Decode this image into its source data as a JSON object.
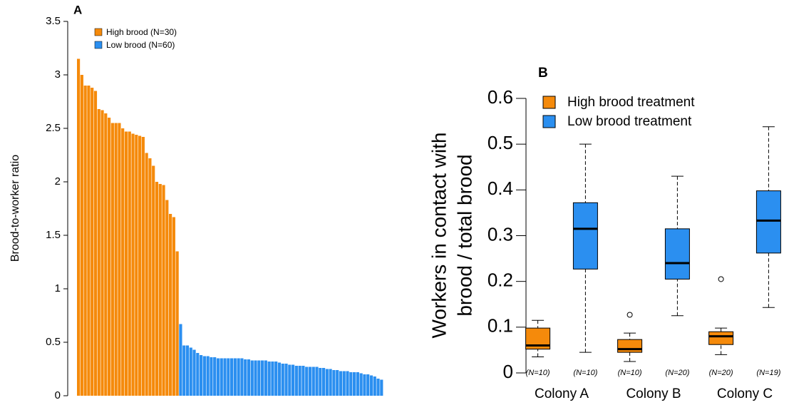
{
  "chart_data": [
    {
      "type": "bar",
      "panel": "A",
      "ylabel": "Brood-to-worker ratio",
      "ylim": [
        0,
        3.5
      ],
      "yticks": [
        0,
        0.5,
        1,
        1.5,
        2,
        2.5,
        3,
        3.5
      ],
      "categories": [
        null,
        null,
        null,
        null,
        null,
        null,
        null,
        null,
        null,
        null,
        null,
        null,
        null,
        null,
        null,
        null,
        null,
        null,
        null,
        null,
        null,
        null,
        null,
        null,
        null,
        null,
        null,
        null,
        null,
        null,
        null,
        null,
        null,
        null,
        null,
        null,
        null,
        null,
        null,
        null,
        null,
        null,
        null,
        null,
        null,
        null,
        null,
        null,
        null,
        null,
        null,
        null,
        null,
        null,
        null,
        null,
        null,
        null,
        null,
        null,
        null,
        null,
        null,
        null,
        null,
        null,
        null,
        null,
        null,
        null,
        null,
        null,
        null,
        null,
        null,
        null,
        null,
        null,
        null,
        null,
        null,
        null,
        null,
        null,
        null,
        null,
        null,
        null,
        null,
        null
      ],
      "series": [
        {
          "name": "High brood (N=30)",
          "color": "#f58a0b",
          "values": [
            3.15,
            3.0,
            2.9,
            2.9,
            2.88,
            2.85,
            2.68,
            2.67,
            2.64,
            2.6,
            2.55,
            2.55,
            2.55,
            2.5,
            2.47,
            2.47,
            2.45,
            2.44,
            2.43,
            2.42,
            2.27,
            2.22,
            2.15,
            2.0,
            1.98,
            1.97,
            1.83,
            1.7,
            1.67,
            1.35,
            null,
            null,
            null,
            null,
            null,
            null,
            null,
            null,
            null,
            null,
            null,
            null,
            null,
            null,
            null,
            null,
            null,
            null,
            null,
            null,
            null,
            null,
            null,
            null,
            null,
            null,
            null,
            null,
            null,
            null,
            null,
            null,
            null,
            null,
            null,
            null,
            null,
            null,
            null,
            null,
            null,
            null,
            null,
            null,
            null,
            null,
            null,
            null,
            null,
            null,
            null,
            null,
            null,
            null,
            null,
            null,
            null,
            null,
            null,
            null
          ]
        },
        {
          "name": "Low brood (N=60)",
          "color": "#2b8ff0",
          "values": [
            null,
            null,
            null,
            null,
            null,
            null,
            null,
            null,
            null,
            null,
            null,
            null,
            null,
            null,
            null,
            null,
            null,
            null,
            null,
            null,
            null,
            null,
            null,
            null,
            null,
            null,
            null,
            null,
            null,
            null,
            0.67,
            0.47,
            0.47,
            0.45,
            0.43,
            0.4,
            0.38,
            0.37,
            0.37,
            0.36,
            0.36,
            0.35,
            0.35,
            0.35,
            0.35,
            0.35,
            0.35,
            0.35,
            0.35,
            0.34,
            0.34,
            0.33,
            0.33,
            0.33,
            0.33,
            0.33,
            0.32,
            0.32,
            0.32,
            0.31,
            0.3,
            0.3,
            0.29,
            0.29,
            0.28,
            0.28,
            0.28,
            0.27,
            0.27,
            0.27,
            0.27,
            0.26,
            0.26,
            0.25,
            0.25,
            0.24,
            0.24,
            0.23,
            0.23,
            0.23,
            0.22,
            0.22,
            0.22,
            0.21,
            0.2,
            0.2,
            0.19,
            0.18,
            0.16,
            0.15
          ]
        }
      ]
    },
    {
      "type": "box",
      "panel": "B",
      "ylabel": [
        "Workers in contact with",
        "brood / total brood"
      ],
      "ylim": [
        0,
        0.6
      ],
      "yticks": [
        0,
        0.1,
        0.2,
        0.3,
        0.4,
        0.5,
        0.6
      ],
      "categories": [
        "Colony A",
        "Colony B",
        "Colony C"
      ],
      "series": [
        {
          "name": "High brood treatment",
          "color": "#f58a0b",
          "n_labels": [
            "(N=10)",
            "(N=10)",
            "(N=20)"
          ],
          "boxes": [
            {
              "min": 0.035,
              "q1": 0.052,
              "median": 0.06,
              "q3": 0.098,
              "max": 0.115
            },
            {
              "min": 0.025,
              "q1": 0.045,
              "median": 0.052,
              "q3": 0.073,
              "max": 0.087,
              "outliers": [
                0.127
              ]
            },
            {
              "min": 0.04,
              "q1": 0.062,
              "median": 0.08,
              "q3": 0.09,
              "max": 0.098,
              "outliers": [
                0.205
              ]
            }
          ]
        },
        {
          "name": "Low brood treatment",
          "color": "#2b8ff0",
          "n_labels": [
            "(N=10)",
            "(N=20)",
            "(N=19)"
          ],
          "boxes": [
            {
              "min": 0.045,
              "q1": 0.227,
              "median": 0.315,
              "q3": 0.372,
              "max": 0.5
            },
            {
              "min": 0.125,
              "q1": 0.205,
              "median": 0.24,
              "q3": 0.315,
              "max": 0.43
            },
            {
              "min": 0.143,
              "q1": 0.262,
              "median": 0.333,
              "q3": 0.398,
              "max": 0.538
            }
          ]
        }
      ]
    }
  ]
}
